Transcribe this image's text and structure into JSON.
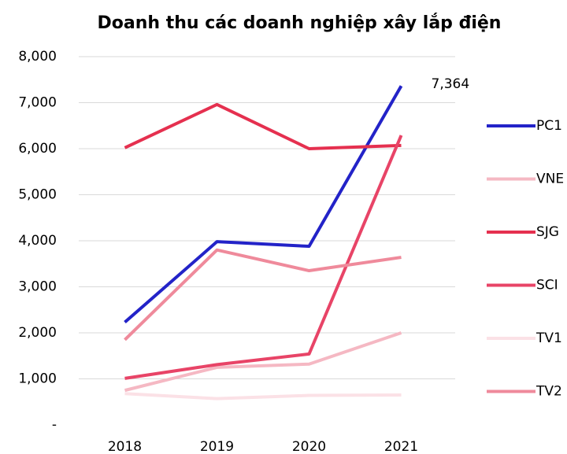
{
  "chart_data": {
    "type": "line",
    "title": "Doanh thu các doanh nghiệp xây lắp điện",
    "categories": [
      "2018",
      "2019",
      "2020",
      "2021"
    ],
    "series": [
      {
        "name": "PC1",
        "color": "#2323c8",
        "values": [
          2230,
          3980,
          3880,
          7364
        ],
        "value_labels": [
          null,
          null,
          null,
          "7,364"
        ]
      },
      {
        "name": "VNE",
        "color": "#f5b8c3",
        "values": [
          750,
          1250,
          1320,
          2000
        ]
      },
      {
        "name": "SJG",
        "color": "#e5304f",
        "values": [
          6020,
          6960,
          6000,
          6070
        ]
      },
      {
        "name": "SCI",
        "color": "#e84467",
        "values": [
          1010,
          1310,
          1540,
          6290
        ]
      },
      {
        "name": "TV1",
        "color": "#fbe1e6",
        "values": [
          680,
          570,
          640,
          650
        ]
      },
      {
        "name": "TV2",
        "color": "#ef8a9b",
        "values": [
          1850,
          3800,
          3350,
          3640
        ]
      }
    ],
    "ylim": [
      0,
      8000
    ],
    "yticks": [
      {
        "value": 0,
        "label": "-"
      },
      {
        "value": 1000,
        "label": "1,000"
      },
      {
        "value": 2000,
        "label": "2,000"
      },
      {
        "value": 3000,
        "label": "3,000"
      },
      {
        "value": 4000,
        "label": "4,000"
      },
      {
        "value": 5000,
        "label": "5,000"
      },
      {
        "value": 6000,
        "label": "6,000"
      },
      {
        "value": 7000,
        "label": "7,000"
      },
      {
        "value": 8000,
        "label": "8,000"
      }
    ],
    "grid": true,
    "legend": "right"
  }
}
